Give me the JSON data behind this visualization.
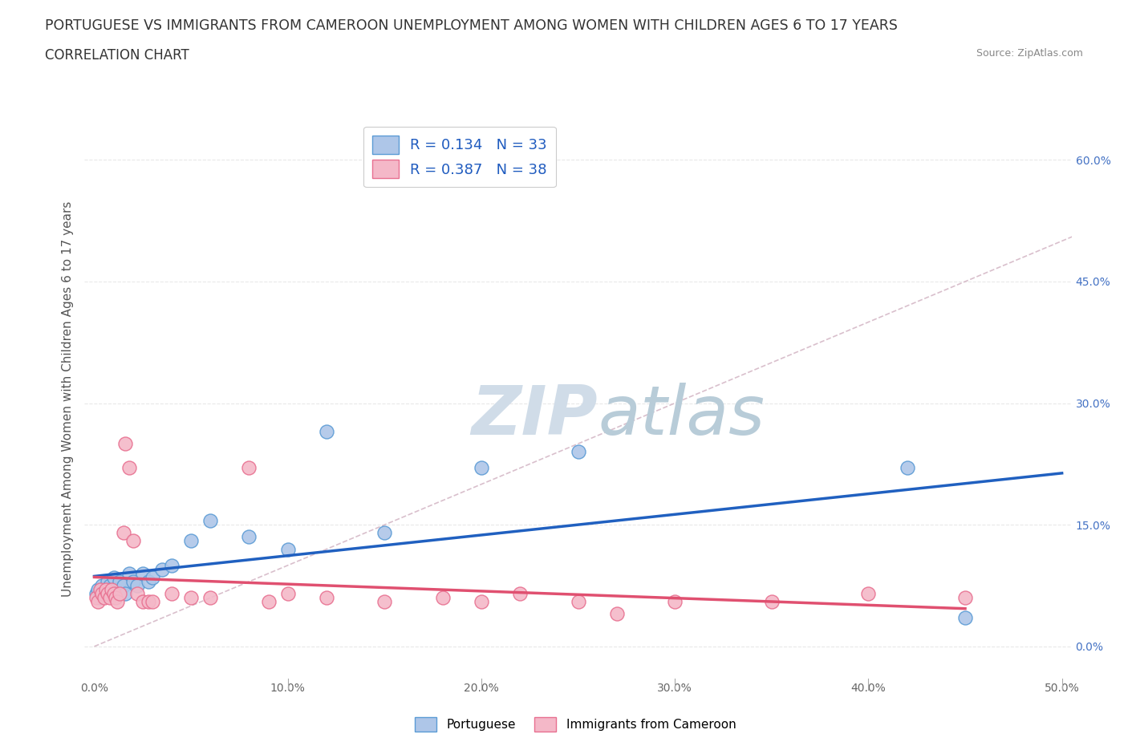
{
  "title_line1": "PORTUGUESE VS IMMIGRANTS FROM CAMEROON UNEMPLOYMENT AMONG WOMEN WITH CHILDREN AGES 6 TO 17 YEARS",
  "title_line2": "CORRELATION CHART",
  "source_text": "Source: ZipAtlas.com",
  "ylabel": "Unemployment Among Women with Children Ages 6 to 17 years",
  "xlim": [
    -0.005,
    0.505
  ],
  "ylim": [
    -0.04,
    0.65
  ],
  "xticks": [
    0.0,
    0.1,
    0.2,
    0.3,
    0.4,
    0.5
  ],
  "xticklabels": [
    "0.0%",
    "10.0%",
    "20.0%",
    "30.0%",
    "40.0%",
    "50.0%"
  ],
  "yticks": [
    0.0,
    0.15,
    0.3,
    0.45,
    0.6
  ],
  "yticklabels": [
    "",
    "",
    "",
    "",
    ""
  ],
  "right_ytick_labels": [
    "0.0%",
    "15.0%",
    "30.0%",
    "45.0%",
    "60.0%"
  ],
  "portuguese_color": "#aec6e8",
  "cameroon_color": "#f4b8c8",
  "portuguese_edge_color": "#5b9bd5",
  "cameroon_edge_color": "#e87090",
  "trend_portuguese_color": "#2060c0",
  "trend_cameroon_color": "#e05070",
  "ref_line_color": "#d0b0c0",
  "watermark_color": "#d0dce8",
  "legend_r1": "R = 0.134",
  "legend_n1": "N = 33",
  "legend_r2": "R = 0.387",
  "legend_n2": "N = 38",
  "grid_color": "#e8e8e8",
  "grid_linestyle": "--",
  "background_color": "#ffffff",
  "title_fontsize": 12.5,
  "subtitle_fontsize": 12,
  "axis_label_fontsize": 11,
  "tick_fontsize": 10,
  "legend_fontsize": 13,
  "port_x": [
    0.001,
    0.002,
    0.003,
    0.004,
    0.005,
    0.006,
    0.007,
    0.008,
    0.009,
    0.01,
    0.011,
    0.012,
    0.013,
    0.015,
    0.016,
    0.018,
    0.02,
    0.022,
    0.025,
    0.028,
    0.03,
    0.035,
    0.04,
    0.05,
    0.06,
    0.08,
    0.1,
    0.12,
    0.15,
    0.2,
    0.25,
    0.42,
    0.45
  ],
  "port_y": [
    0.065,
    0.07,
    0.06,
    0.075,
    0.065,
    0.07,
    0.08,
    0.075,
    0.065,
    0.085,
    0.07,
    0.065,
    0.08,
    0.075,
    0.065,
    0.09,
    0.08,
    0.075,
    0.09,
    0.08,
    0.085,
    0.095,
    0.1,
    0.13,
    0.155,
    0.135,
    0.12,
    0.265,
    0.14,
    0.22,
    0.24,
    0.22,
    0.035
  ],
  "cam_x": [
    0.001,
    0.002,
    0.003,
    0.004,
    0.005,
    0.006,
    0.007,
    0.008,
    0.009,
    0.01,
    0.011,
    0.012,
    0.013,
    0.015,
    0.016,
    0.018,
    0.02,
    0.022,
    0.025,
    0.028,
    0.03,
    0.04,
    0.05,
    0.06,
    0.08,
    0.09,
    0.1,
    0.12,
    0.15,
    0.18,
    0.2,
    0.22,
    0.25,
    0.27,
    0.3,
    0.35,
    0.4,
    0.45
  ],
  "cam_y": [
    0.06,
    0.055,
    0.07,
    0.065,
    0.06,
    0.07,
    0.065,
    0.06,
    0.07,
    0.065,
    0.06,
    0.055,
    0.065,
    0.14,
    0.25,
    0.22,
    0.13,
    0.065,
    0.055,
    0.055,
    0.055,
    0.065,
    0.06,
    0.06,
    0.22,
    0.055,
    0.065,
    0.06,
    0.055,
    0.06,
    0.055,
    0.065,
    0.055,
    0.04,
    0.055,
    0.055,
    0.065,
    0.06
  ]
}
